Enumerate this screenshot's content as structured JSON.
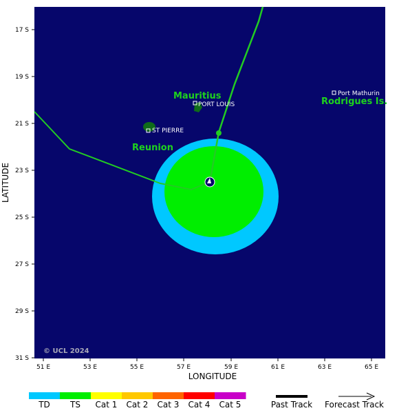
{
  "map": {
    "xlabel": "LONGITUDE",
    "ylabel": "LATITUDE",
    "x_ticks": [
      "51 E",
      "53 E",
      "55 E",
      "57 E",
      "59 E",
      "61 E",
      "63 E",
      "65 E"
    ],
    "y_ticks": [
      "17 S",
      "19 S",
      "21 S",
      "23 S",
      "25 S",
      "27 S",
      "29 S",
      "31 S"
    ],
    "colors": {
      "ocean": "#06066b",
      "land": "#0f6b1a",
      "label_green": "#1ed21e",
      "track_green": "#22cc22",
      "wind_td": "#00c8ff",
      "wind_ts": "#00ee00",
      "text_white": "#ffffff"
    },
    "place_labels": {
      "mauritius": "Mauritius",
      "reunion": "Reunion",
      "rodrigues": "Rodrigues Is.",
      "port_louis": "PORT LOUIS",
      "st_pierre": "ST PIERRE",
      "port_mathurin": "Port Mathurin"
    },
    "copyright": "© UCL 2024"
  },
  "legend": {
    "categories": [
      {
        "label": "TD",
        "color": "#00c8ff"
      },
      {
        "label": "TS",
        "color": "#00ee00"
      },
      {
        "label": "Cat 1",
        "color": "#ffff00"
      },
      {
        "label": "Cat 2",
        "color": "#ffc800"
      },
      {
        "label": "Cat 3",
        "color": "#ff6400"
      },
      {
        "label": "Cat 4",
        "color": "#ff0000"
      },
      {
        "label": "Cat 5",
        "color": "#c800c8"
      }
    ],
    "past_track": "Past Track",
    "forecast_track": "Forecast Track"
  }
}
